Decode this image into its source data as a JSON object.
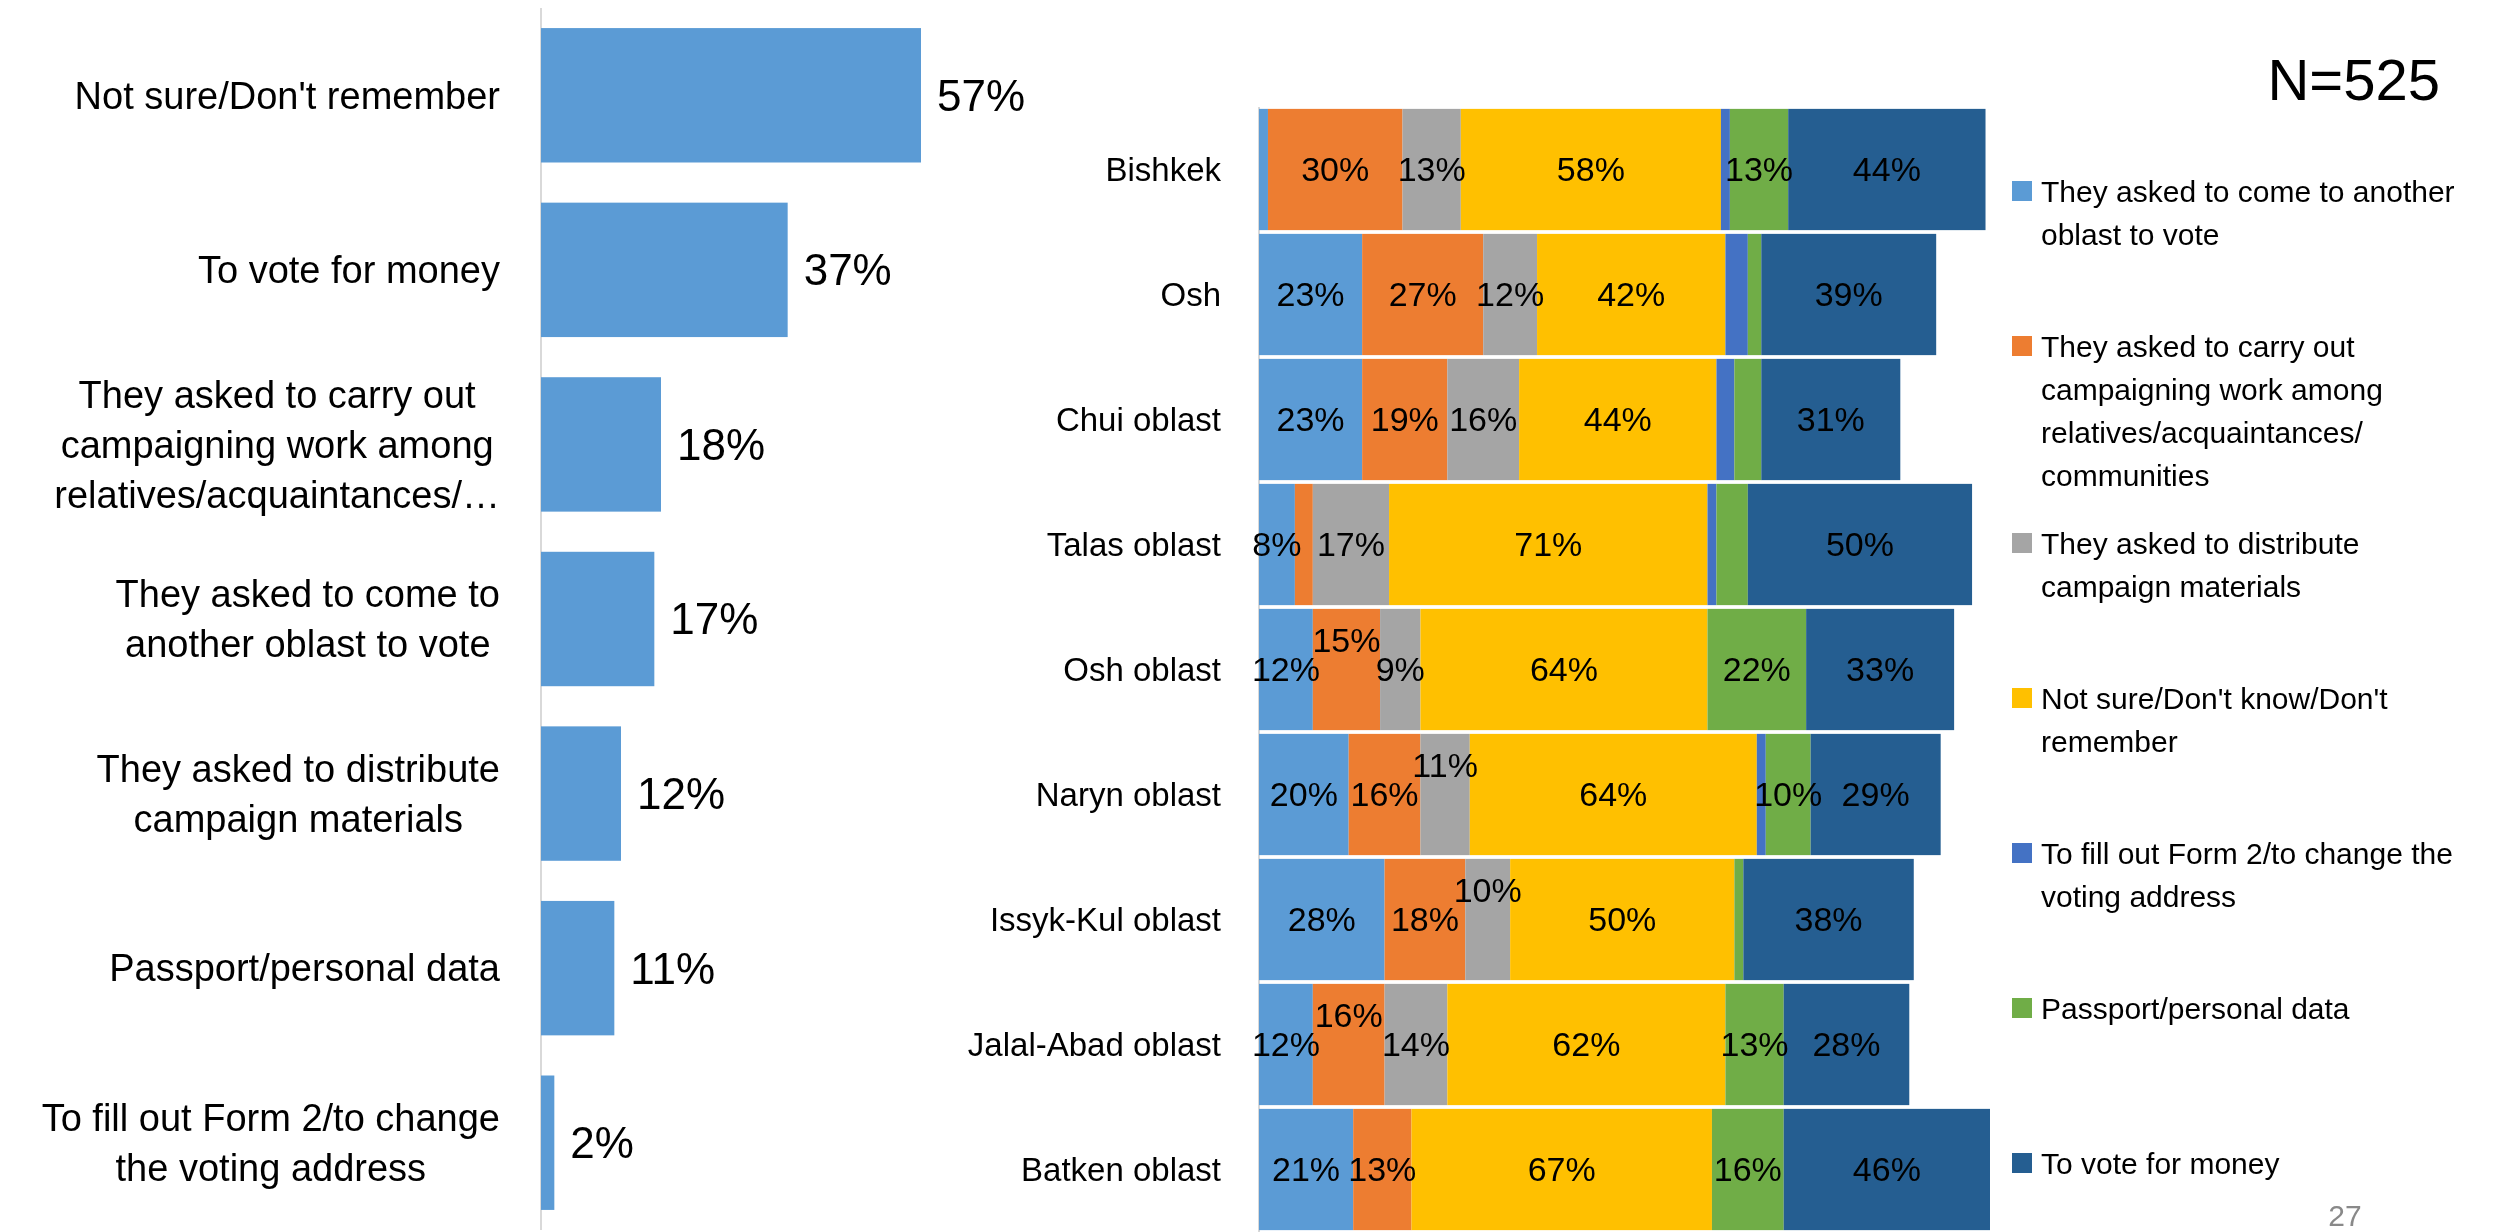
{
  "chart_data": [
    {
      "type": "bar",
      "orientation": "horizontal",
      "categories": [
        "Not sure/Don't remember",
        "To vote for money",
        "They asked to carry out campaigning work among relatives/acquaintances/…",
        "They asked to come to another oblast to vote",
        "They asked to distribute campaign materials",
        "Passport/personal data",
        "To fill out Form 2/to change the voting address"
      ],
      "values": [
        57,
        37,
        18,
        17,
        12,
        11,
        2
      ],
      "value_labels": [
        "57%",
        "37%",
        "18%",
        "17%",
        "12%",
        "11%",
        "2%"
      ],
      "color": "#5b9bd5",
      "tick_labels": "y"
    },
    {
      "type": "bar",
      "orientation": "horizontal",
      "stacked": true,
      "categories": [
        "Bishkek",
        "Osh",
        "Chui oblast",
        "Talas oblast",
        "Osh oblast",
        "Naryn oblast",
        "Issyk-Kul oblast",
        "Jalal-Abad oblast",
        "Batken oblast"
      ],
      "series": [
        {
          "name": "They asked to come to another oblast to vote",
          "color": "#5b9bd5",
          "values": [
            2,
            23,
            23,
            8,
            12,
            20,
            28,
            12,
            21
          ],
          "value_labels": [
            null,
            "23%",
            "23%",
            "8%",
            "12%",
            "20%",
            "28%",
            "12%",
            "21%"
          ]
        },
        {
          "name": "They asked to carry out campaigning work among relatives/acquaintances/ communities",
          "color": "#ed7d31",
          "values": [
            30,
            27,
            19,
            4,
            15,
            16,
            18,
            16,
            13
          ],
          "value_labels": [
            "30%",
            "27%",
            "19%",
            null,
            "15%",
            "16%",
            "18%",
            "16%",
            "13%"
          ]
        },
        {
          "name": "They asked to distribute campaign materials",
          "color": "#a5a5a5",
          "values": [
            13,
            12,
            16,
            17,
            9,
            11,
            10,
            14,
            null
          ],
          "value_labels": [
            "13%",
            "12%",
            "16%",
            "17%",
            "9%",
            "11%",
            "10%",
            "14%",
            null
          ]
        },
        {
          "name": "Not sure/Don't know/Don't remember",
          "color": "#ffc000",
          "values": [
            58,
            42,
            44,
            71,
            64,
            64,
            50,
            62,
            67
          ],
          "value_labels": [
            "58%",
            "42%",
            "44%",
            "71%",
            "64%",
            "64%",
            "50%",
            "62%",
            "67%"
          ]
        },
        {
          "name": "To fill out Form 2/to change the voting address",
          "color": "#4472c4",
          "values": [
            2,
            5,
            4,
            2,
            null,
            2,
            null,
            null,
            null
          ]
        },
        {
          "name": "Passport/personal data",
          "color": "#70ad47",
          "values": [
            13,
            3,
            6,
            7,
            22,
            10,
            2,
            13,
            16
          ],
          "value_labels": [
            "13%",
            null,
            null,
            null,
            "22%",
            "10%",
            null,
            "13%",
            "16%"
          ]
        },
        {
          "name": "To vote for money",
          "color": "#255e91",
          "values": [
            44,
            39,
            31,
            50,
            33,
            29,
            38,
            28,
            46
          ],
          "value_labels": [
            "44%",
            "39%",
            "31%",
            "50%",
            "33%",
            "29%",
            "38%",
            "28%",
            "46%"
          ]
        }
      ],
      "legend": "right",
      "tick_labels": "y",
      "annotations": [
        "N=525",
        "27"
      ]
    }
  ]
}
